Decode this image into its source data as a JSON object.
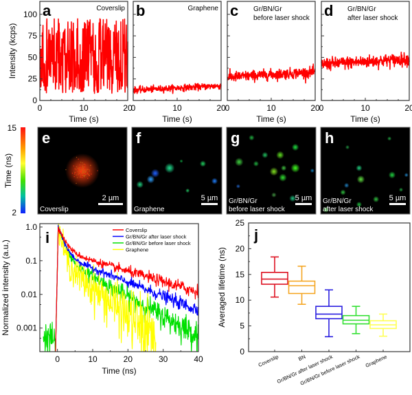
{
  "chart_data": [
    {
      "id": "a",
      "type": "line",
      "panel_label": "a",
      "title": "Coverslip",
      "xlabel": "Time (s)",
      "ylabel": "Intensity (kcps)",
      "xlim": [
        0,
        20
      ],
      "ylim": [
        0,
        115
      ],
      "xticks": [
        0,
        10,
        20
      ],
      "yticks": [
        0,
        25,
        50,
        75,
        100
      ],
      "color": "#ff0000",
      "trace": {
        "kind": "blinking",
        "low": 8,
        "high": 95,
        "mean": 50
      }
    },
    {
      "id": "b",
      "type": "line",
      "panel_label": "b",
      "title": "Graphene",
      "xlabel": "Time (s)",
      "xlim": [
        0,
        20
      ],
      "ylim": [
        0,
        115
      ],
      "xticks": [
        0,
        10,
        20
      ],
      "color": "#ff0000",
      "trace": {
        "kind": "noisy",
        "start": 12,
        "end": 17,
        "noise": 3
      }
    },
    {
      "id": "c",
      "type": "line",
      "panel_label": "c",
      "title": "Gr/BN/Gr\nbefore laser shock",
      "title_lines": [
        "Gr/BN/Gr",
        "before laser shock"
      ],
      "xlabel": "Time (s)",
      "xlim": [
        0,
        20
      ],
      "ylim": [
        0,
        115
      ],
      "xticks": [
        0,
        10,
        20
      ],
      "color": "#ff0000",
      "trace": {
        "kind": "noisy",
        "start": 27,
        "end": 33,
        "noise": 5
      }
    },
    {
      "id": "d",
      "type": "line",
      "panel_label": "d",
      "title": "Gr/BN/Gr\nafter laser shock",
      "title_lines": [
        "Gr/BN/Gr",
        "after laser shock"
      ],
      "xlabel": "Time (s)",
      "xlim": [
        0,
        20
      ],
      "ylim": [
        0,
        115
      ],
      "xticks": [
        0,
        10,
        20
      ],
      "color": "#ff0000",
      "trace": {
        "kind": "noisy",
        "start": 42,
        "end": 48,
        "noise": 6
      }
    },
    {
      "id": "colorbar",
      "type": "heatmap",
      "label": "Time (ns)",
      "range": [
        2,
        15
      ],
      "ticks": [
        2,
        15
      ]
    },
    {
      "id": "e",
      "type": "heatmap",
      "panel_label": "e",
      "caption": "Coverslip",
      "scale_bar": "2 µm",
      "spots": [
        {
          "x": 0.5,
          "y": 0.5,
          "r": 0.12,
          "color": "#ff4010"
        }
      ]
    },
    {
      "id": "f",
      "type": "heatmap",
      "panel_label": "f",
      "caption": "Graphene",
      "scale_bar": "5 µm",
      "spots": [
        {
          "x": 0.42,
          "y": 0.47,
          "r": 0.035,
          "color": "#20e090"
        },
        {
          "x": 0.26,
          "y": 0.53,
          "r": 0.03,
          "color": "#2060ff"
        },
        {
          "x": 0.21,
          "y": 0.6,
          "r": 0.028,
          "color": "#30a0ff"
        },
        {
          "x": 0.09,
          "y": 0.66,
          "r": 0.025,
          "color": "#20d080"
        },
        {
          "x": 0.79,
          "y": 0.42,
          "r": 0.022,
          "color": "#20d060"
        },
        {
          "x": 0.92,
          "y": 0.62,
          "r": 0.022,
          "color": "#2080ff"
        },
        {
          "x": 0.62,
          "y": 0.73,
          "r": 0.015,
          "color": "#20c060"
        },
        {
          "x": 0.55,
          "y": 0.39,
          "r": 0.012,
          "color": "#10a040"
        }
      ]
    },
    {
      "id": "g",
      "type": "heatmap",
      "panel_label": "g",
      "caption_lines": [
        "Gr/BN/Gr",
        "before laser shock"
      ],
      "scale_bar": "5 µm",
      "spots": [
        {
          "x": 0.77,
          "y": 0.23,
          "r": 0.025,
          "color": "#20e040"
        },
        {
          "x": 0.6,
          "y": 0.32,
          "r": 0.028,
          "color": "#60e020"
        },
        {
          "x": 0.43,
          "y": 0.32,
          "r": 0.022,
          "color": "#20c060"
        },
        {
          "x": 0.14,
          "y": 0.4,
          "r": 0.03,
          "color": "#40d040"
        },
        {
          "x": 0.33,
          "y": 0.42,
          "r": 0.02,
          "color": "#20b040"
        },
        {
          "x": 0.77,
          "y": 0.47,
          "r": 0.032,
          "color": "#40ff20"
        },
        {
          "x": 0.53,
          "y": 0.51,
          "r": 0.03,
          "color": "#80e020"
        },
        {
          "x": 0.64,
          "y": 0.47,
          "r": 0.02,
          "color": "#40c040"
        },
        {
          "x": 0.63,
          "y": 0.58,
          "r": 0.028,
          "color": "#30e030"
        },
        {
          "x": 0.74,
          "y": 0.82,
          "r": 0.024,
          "color": "#20c080"
        },
        {
          "x": 0.53,
          "y": 0.78,
          "r": 0.018,
          "color": "#409040"
        },
        {
          "x": 0.28,
          "y": 0.12,
          "r": 0.02,
          "color": "#20b040"
        },
        {
          "x": 0.13,
          "y": 0.68,
          "r": 0.015,
          "color": "#2060c0"
        },
        {
          "x": 0.96,
          "y": 0.5,
          "r": 0.015,
          "color": "#1080c0"
        }
      ]
    },
    {
      "id": "h",
      "type": "heatmap",
      "panel_label": "h",
      "caption_lines": [
        "Gr/BN/Gr",
        "after laser shock"
      ],
      "scale_bar": "5 µm",
      "spots": [
        {
          "x": 0.45,
          "y": 0.6,
          "r": 0.028,
          "color": "#60e040"
        },
        {
          "x": 0.43,
          "y": 0.47,
          "r": 0.022,
          "color": "#20d080"
        },
        {
          "x": 0.8,
          "y": 0.55,
          "r": 0.025,
          "color": "#20d040"
        },
        {
          "x": 0.25,
          "y": 0.75,
          "r": 0.02,
          "color": "#30c040"
        },
        {
          "x": 0.62,
          "y": 0.83,
          "r": 0.022,
          "color": "#30c040"
        },
        {
          "x": 0.29,
          "y": 0.67,
          "r": 0.018,
          "color": "#2080c0"
        },
        {
          "x": 0.77,
          "y": 0.13,
          "r": 0.015,
          "color": "#20a040"
        },
        {
          "x": 0.96,
          "y": 0.55,
          "r": 0.015,
          "color": "#2080c0"
        },
        {
          "x": 0.43,
          "y": 0.89,
          "r": 0.02,
          "color": "#20c040"
        },
        {
          "x": 0.9,
          "y": 0.72,
          "r": 0.015,
          "color": "#20a040"
        },
        {
          "x": 0.06,
          "y": 0.95,
          "r": 0.02,
          "color": "#30c030"
        },
        {
          "x": 0.3,
          "y": 0.23,
          "r": 0.015,
          "color": "#209040"
        }
      ]
    },
    {
      "id": "i",
      "type": "line",
      "panel_label": "i",
      "xlabel": "Time (ns)",
      "ylabel": "Normalized intensity (a.u.)",
      "xlim": [
        -5,
        40
      ],
      "ylim_log10": [
        -3.7,
        0.1
      ],
      "xticks": [
        0,
        10,
        20,
        30,
        40
      ],
      "yticks": [
        0.001,
        0.01,
        0.1,
        1.0
      ],
      "ytick_labels": [
        "0.001",
        "0.01",
        "0.1",
        "1.0"
      ],
      "legend_position": "top-right",
      "series": [
        {
          "name": "Coverslip",
          "color": "#ff0000",
          "tau_fast": 1.5,
          "tau_slow": 14,
          "amp_slow": 0.2,
          "noise": 0.03,
          "x_end": 40
        },
        {
          "name": "Gr/BN/Gr after laser shock",
          "color": "#0000ff",
          "tau_fast": 1.3,
          "tau_slow": 10.5,
          "amp_slow": 0.15,
          "noise": 0.03,
          "x_end": 40
        },
        {
          "name": "Gr/BN/Gr before laser shock",
          "color": "#00e000",
          "tau_fast": 1.3,
          "tau_slow": 7.5,
          "amp_slow": 0.12,
          "noise": 0.06,
          "x_end": 40
        },
        {
          "name": "Graphene",
          "color": "#ffff00",
          "tau_fast": 0.9,
          "tau_slow": 5.2,
          "amp_slow": 0.1,
          "noise": 0.18,
          "x_end": 28
        }
      ]
    },
    {
      "id": "j",
      "type": "bar",
      "subtype": "boxplot",
      "panel_label": "j",
      "ylabel": "Averaged lifetime (ns)",
      "ylim": [
        0,
        25
      ],
      "yticks": [
        0,
        5,
        10,
        15,
        20,
        25
      ],
      "categories": [
        "Coverslip",
        "BN",
        "Gr/BN/Gr after laser shock",
        "Gr/BN/Gr before laser shock",
        "Graphene"
      ],
      "series": [
        {
          "name": "Coverslip",
          "color": "#dd1020",
          "min": 10.6,
          "q1": 13.1,
          "median": 14.1,
          "q3": 15.4,
          "max": 18.4
        },
        {
          "name": "BN",
          "color": "#f5a623",
          "min": 9.2,
          "q1": 11.3,
          "median": 12.8,
          "q3": 13.7,
          "max": 16.6
        },
        {
          "name": "Gr/BN/Gr after laser shock",
          "color": "#2a1fe0",
          "min": 2.9,
          "q1": 6.4,
          "median": 7.3,
          "q3": 8.8,
          "max": 12.0
        },
        {
          "name": "Gr/BN/Gr before laser shock",
          "color": "#30e030",
          "min": 3.5,
          "q1": 5.4,
          "median": 6.1,
          "q3": 7.0,
          "max": 8.8
        },
        {
          "name": "Graphene",
          "color": "#ffff55",
          "min": 3.0,
          "q1": 4.5,
          "median": 5.2,
          "q3": 6.0,
          "max": 7.3
        }
      ]
    }
  ]
}
